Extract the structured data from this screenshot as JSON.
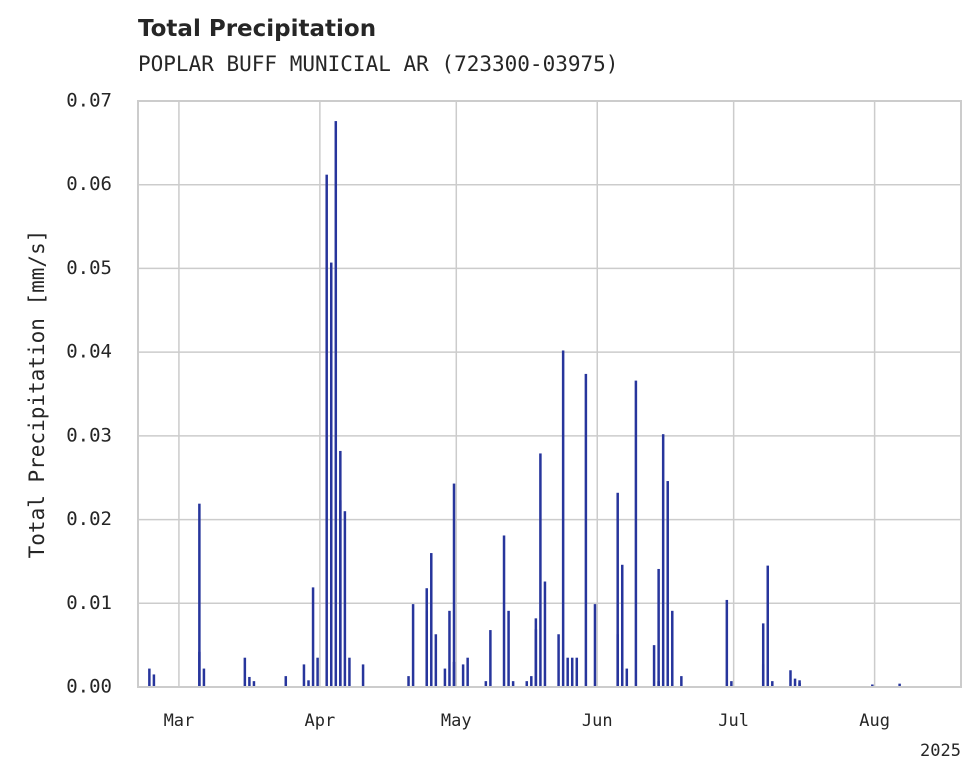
{
  "chart_data": {
    "type": "bar",
    "title": "Total Precipitation",
    "subtitle": "POPLAR BUFF MUNICIAL AR (723300-03975)",
    "xlabel": "",
    "ylabel": "Total Precipitation [mm/s]",
    "x_range": [
      "2025-02-20",
      "2025-08-20"
    ],
    "ylim": [
      0,
      0.07
    ],
    "y_ticks": [
      "0.00",
      "0.01",
      "0.02",
      "0.03",
      "0.04",
      "0.05",
      "0.06",
      "0.07"
    ],
    "x_ticks": [
      {
        "date": "2025-03-01",
        "label": "Mar"
      },
      {
        "date": "2025-04-01",
        "label": "Apr"
      },
      {
        "date": "2025-05-01",
        "label": "May"
      },
      {
        "date": "2025-06-01",
        "label": "Jun"
      },
      {
        "date": "2025-07-01",
        "label": "Jul"
      },
      {
        "date": "2025-08-01",
        "label": "Aug"
      }
    ],
    "year_label": "2025",
    "grid": true,
    "color": "#27359c",
    "series": [
      {
        "x": [
          "2025-02-22",
          "2025-02-23",
          "2025-03-05",
          "2025-03-05",
          "2025-03-06",
          "2025-03-15",
          "2025-03-16",
          "2025-03-17",
          "2025-03-24",
          "2025-03-28",
          "2025-03-29",
          "2025-03-30",
          "2025-03-31",
          "2025-04-02",
          "2025-04-03",
          "2025-04-03",
          "2025-04-04",
          "2025-04-05",
          "2025-04-05",
          "2025-04-06",
          "2025-04-07",
          "2025-04-10",
          "2025-04-20",
          "2025-04-21",
          "2025-04-24",
          "2025-04-24",
          "2025-04-25",
          "2025-04-26",
          "2025-04-28",
          "2025-04-29",
          "2025-04-30",
          "2025-04-30",
          "2025-05-02",
          "2025-05-03",
          "2025-05-07",
          "2025-05-08",
          "2025-05-11",
          "2025-05-12",
          "2025-05-13",
          "2025-05-16",
          "2025-05-17",
          "2025-05-18",
          "2025-05-18",
          "2025-05-19",
          "2025-05-20",
          "2025-05-23",
          "2025-05-24",
          "2025-05-25",
          "2025-05-26",
          "2025-05-27",
          "2025-05-29",
          "2025-05-31",
          "2025-06-05",
          "2025-06-05",
          "2025-06-06",
          "2025-06-07",
          "2025-06-09",
          "2025-06-13",
          "2025-06-14",
          "2025-06-14",
          "2025-06-15",
          "2025-06-16",
          "2025-06-17",
          "2025-06-19",
          "2025-06-29",
          "2025-06-30",
          "2025-07-07",
          "2025-07-07",
          "2025-07-08",
          "2025-07-09",
          "2025-07-13",
          "2025-07-14",
          "2025-07-15",
          "2025-07-15",
          "2025-07-31",
          "2025-08-06"
        ],
        "values": [
          0.0022,
          0.0015,
          0.0042,
          0.0219,
          0.0022,
          0.0035,
          0.0012,
          0.0007,
          0.0013,
          0.0027,
          0.0008,
          0.0119,
          0.0035,
          0.0612,
          0.0105,
          0.0507,
          0.0676,
          0.0282,
          0.0223,
          0.021,
          0.0035,
          0.0027,
          0.0013,
          0.0099,
          0.0091,
          0.0118,
          0.016,
          0.0063,
          0.0022,
          0.0091,
          0.0243,
          0.003,
          0.0027,
          0.0035,
          0.0007,
          0.0068,
          0.0181,
          0.0091,
          0.0007,
          0.0007,
          0.0013,
          0.0069,
          0.0082,
          0.0279,
          0.0126,
          0.0063,
          0.0402,
          0.0035,
          0.0035,
          0.0035,
          0.0374,
          0.0099,
          0.0063,
          0.0232,
          0.0146,
          0.0022,
          0.0366,
          0.005,
          0.0007,
          0.0141,
          0.0302,
          0.0246,
          0.0091,
          0.0013,
          0.0104,
          0.0007,
          0.0076,
          0.0027,
          0.0145,
          0.0007,
          0.002,
          0.001,
          0.0005,
          0.0008,
          0.0003,
          0.0004
        ]
      }
    ]
  }
}
